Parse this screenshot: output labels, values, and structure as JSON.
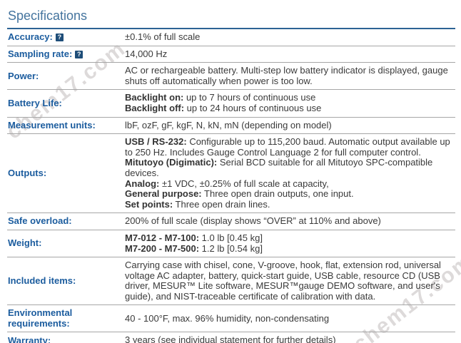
{
  "page": {
    "title": "Specifications"
  },
  "watermark": {
    "text": "chem17.com"
  },
  "colors": {
    "heading": "#44749E",
    "heading_rule": "#2C6394",
    "label_blue": "#1B5C9E",
    "value_text": "#3A3A3A",
    "row_separator": "#A6A6A6",
    "table_bottom_border": "#1A1A1A",
    "help_icon_bg": "#1F4E79"
  },
  "icons": {
    "help_glyph": "?"
  },
  "table": {
    "rows": [
      {
        "id": "accuracy",
        "label": "Accuracy:",
        "help": true,
        "paragraphs": [
          [
            {
              "t": "±0.1% of full scale"
            }
          ]
        ]
      },
      {
        "id": "sampling-rate",
        "label": "Sampling rate:",
        "help": true,
        "paragraphs": [
          [
            {
              "t": "14,000 Hz"
            }
          ]
        ]
      },
      {
        "id": "power",
        "label": "Power:",
        "help": false,
        "paragraphs": [
          [
            {
              "t": "AC or rechargeable battery. Multi-step low battery indicator is displayed, gauge shuts off automatically when power is too low."
            }
          ]
        ]
      },
      {
        "id": "battery-life",
        "label": "Battery Life:",
        "help": false,
        "paragraphs": [
          [
            {
              "t": "Backlight on:",
              "b": true
            },
            {
              "t": " up to 7 hours of continuous use"
            }
          ],
          [
            {
              "t": "Backlight off:",
              "b": true
            },
            {
              "t": " up to 24 hours of continuous use"
            }
          ]
        ]
      },
      {
        "id": "measurement-units",
        "label": "Measurement units:",
        "help": false,
        "paragraphs": [
          [
            {
              "t": "lbF, ozF, gF, kgF, N, kN, mN (depending on model)"
            }
          ]
        ]
      },
      {
        "id": "outputs",
        "label": "Outputs:",
        "help": false,
        "paragraphs": [
          [
            {
              "t": "USB / RS-232:",
              "b": true
            },
            {
              "t": " Configurable up to 115,200 baud. Automatic output available up to 250 Hz. Includes Gauge Control Language 2 for full computer control."
            }
          ],
          [
            {
              "t": "Mitutoyo (Digimatic):",
              "b": true
            },
            {
              "t": " Serial BCD suitable for all Mitutoyo SPC-compatible devices."
            }
          ],
          [
            {
              "t": "Analog:",
              "b": true
            },
            {
              "t": " ±1 VDC, ±0.25% of full scale at capacity,"
            }
          ],
          [
            {
              "t": "General purpose:",
              "b": true
            },
            {
              "t": " Three open drain outputs, one input."
            }
          ],
          [
            {
              "t": "Set points:",
              "b": true
            },
            {
              "t": " Three open drain lines."
            }
          ]
        ]
      },
      {
        "id": "safe-overload",
        "label": "Safe overload:",
        "help": false,
        "paragraphs": [
          [
            {
              "t": "200% of full scale (display shows “OVER” at 110% and above)"
            }
          ]
        ]
      },
      {
        "id": "weight",
        "label": "Weight:",
        "help": false,
        "paragraphs": [
          [
            {
              "t": "M7-012 - M7-100:",
              "b": true
            },
            {
              "t": " 1.0 lb [0.45 kg]"
            }
          ],
          [
            {
              "t": "M7-200 - M7-500:",
              "b": true
            },
            {
              "t": " 1.2 lb [0.54 kg]"
            }
          ]
        ]
      },
      {
        "id": "included-items",
        "label": "Included items:",
        "help": false,
        "paragraphs": [
          [
            {
              "t": "Carrying case with chisel, cone, V-groove, hook, flat, extension rod, universal voltage AC adapter, battery, quick-start guide, USB cable, resource CD (USB driver, MESUR™ Lite software, MESUR™gauge DEMO software, and user's guide), and NIST-traceable certificate of calibration with data."
            }
          ]
        ]
      },
      {
        "id": "environmental-requirements",
        "label": "Environmental requirements:",
        "help": false,
        "paragraphs": [
          [
            {
              "t": "40 - 100°F, max. 96% humidity, non-condensating"
            }
          ]
        ]
      },
      {
        "id": "warranty",
        "label": "Warranty:",
        "help": false,
        "paragraphs": [
          [
            {
              "t": "3 years (see individual statement for further details)"
            }
          ]
        ]
      }
    ]
  }
}
